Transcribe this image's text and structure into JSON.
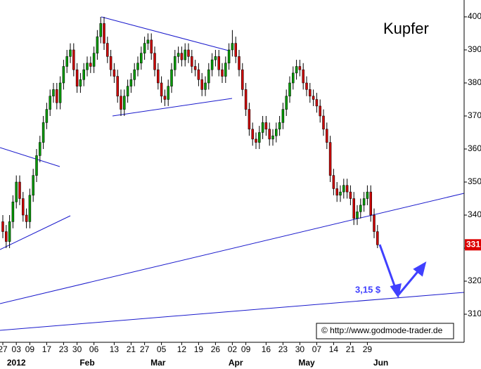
{
  "chart_data": {
    "type": "candlestick",
    "title": "Kupfer",
    "categories": [
      "27",
      null,
      null,
      null,
      "03",
      null,
      null,
      null,
      "09",
      null,
      null,
      null,
      null,
      "17",
      null,
      null,
      null,
      null,
      "23",
      null,
      null,
      null,
      "30",
      null,
      null,
      null,
      null,
      "06",
      null,
      null,
      null,
      null,
      null,
      "13",
      null,
      null,
      null,
      null,
      "21",
      null,
      null,
      null,
      "27",
      null,
      null,
      null,
      null,
      "05",
      null,
      null,
      null,
      null,
      null,
      "12",
      null,
      null,
      null,
      null,
      "19",
      null,
      null,
      null,
      null,
      "26",
      null,
      null,
      null,
      null,
      "02",
      null,
      null,
      null,
      "09",
      null,
      null,
      null,
      null,
      null,
      "16",
      null,
      null,
      null,
      null,
      "23",
      null,
      null,
      null,
      null,
      "30",
      null,
      null,
      null,
      null,
      "07",
      null,
      null,
      null,
      null,
      "14",
      null,
      null,
      null,
      null,
      "21",
      null,
      null,
      null,
      null,
      "29",
      null,
      null,
      null
    ],
    "month_labels": [
      {
        "label": "2012",
        "index": 4
      },
      {
        "label": "Feb",
        "index": 25
      },
      {
        "label": "Mar",
        "index": 46
      },
      {
        "label": "Apr",
        "index": 69
      },
      {
        "label": "May",
        "index": 90
      },
      {
        "label": "Jun",
        "index": 112
      }
    ],
    "open": [
      338,
      335,
      332,
      338,
      344,
      350,
      345,
      340,
      338,
      346,
      352,
      358,
      362,
      368,
      372,
      376,
      378,
      374,
      380,
      385,
      388,
      390,
      384,
      379,
      381,
      384,
      386,
      385,
      389,
      394,
      398,
      392,
      388,
      384,
      382,
      376,
      372,
      376,
      379,
      381,
      384,
      386,
      389,
      392,
      393,
      389,
      384,
      380,
      376,
      375,
      379,
      384,
      388,
      389,
      387,
      390,
      388,
      385,
      384,
      381,
      378,
      380,
      384,
      387,
      388,
      384,
      382,
      386,
      390,
      392,
      388,
      384,
      378,
      372,
      366,
      363,
      362,
      365,
      368,
      366,
      363,
      364,
      366,
      368,
      372,
      376,
      380,
      383,
      385,
      384,
      380,
      378,
      376,
      375,
      373,
      370,
      366,
      362,
      352,
      348,
      346,
      347,
      349,
      347,
      345,
      339,
      341,
      343,
      345,
      347,
      340,
      335
    ],
    "high": [
      340,
      337,
      340,
      346,
      352,
      352,
      347,
      342,
      348,
      354,
      360,
      364,
      370,
      374,
      378,
      380,
      380,
      382,
      387,
      390,
      392,
      392,
      386,
      383,
      386,
      388,
      388,
      391,
      396,
      400,
      400,
      394,
      390,
      386,
      384,
      378,
      378,
      381,
      383,
      386,
      388,
      391,
      394,
      395,
      395,
      391,
      386,
      382,
      378,
      381,
      386,
      390,
      391,
      391,
      392,
      392,
      390,
      387,
      386,
      383,
      382,
      386,
      389,
      390,
      390,
      386,
      388,
      392,
      396,
      394,
      390,
      386,
      380,
      374,
      368,
      365,
      367,
      370,
      370,
      368,
      366,
      368,
      370,
      374,
      378,
      382,
      385,
      387,
      387,
      386,
      382,
      380,
      378,
      377,
      375,
      372,
      368,
      364,
      354,
      350,
      349,
      351,
      351,
      349,
      347,
      343,
      345,
      347,
      349,
      349,
      342,
      337
    ],
    "low": [
      333,
      330,
      330,
      336,
      342,
      343,
      338,
      336,
      336,
      344,
      350,
      356,
      360,
      366,
      370,
      374,
      372,
      372,
      378,
      383,
      386,
      382,
      377,
      377,
      379,
      382,
      383,
      383,
      387,
      392,
      390,
      386,
      382,
      380,
      374,
      370,
      370,
      374,
      377,
      379,
      382,
      384,
      387,
      390,
      387,
      382,
      378,
      374,
      373,
      373,
      377,
      382,
      386,
      385,
      385,
      386,
      383,
      382,
      379,
      376,
      376,
      378,
      382,
      385,
      382,
      380,
      380,
      384,
      388,
      386,
      382,
      376,
      370,
      364,
      361,
      360,
      360,
      363,
      364,
      361,
      361,
      362,
      364,
      366,
      370,
      374,
      378,
      381,
      382,
      378,
      376,
      374,
      373,
      371,
      368,
      364,
      360,
      350,
      346,
      344,
      344,
      345,
      345,
      343,
      337,
      337,
      339,
      341,
      343,
      338,
      333,
      330
    ],
    "close": [
      335,
      332,
      338,
      344,
      350,
      345,
      340,
      338,
      346,
      352,
      358,
      362,
      368,
      372,
      376,
      378,
      374,
      380,
      385,
      388,
      390,
      384,
      379,
      381,
      384,
      386,
      385,
      389,
      394,
      398,
      392,
      388,
      384,
      382,
      376,
      372,
      376,
      379,
      381,
      384,
      386,
      389,
      392,
      393,
      389,
      384,
      380,
      376,
      375,
      379,
      384,
      388,
      389,
      387,
      390,
      388,
      385,
      384,
      381,
      378,
      380,
      384,
      387,
      388,
      384,
      382,
      386,
      390,
      392,
      388,
      384,
      378,
      372,
      366,
      363,
      362,
      365,
      368,
      366,
      363,
      364,
      366,
      368,
      372,
      376,
      380,
      383,
      385,
      384,
      380,
      378,
      376,
      375,
      373,
      370,
      366,
      362,
      352,
      348,
      346,
      347,
      349,
      347,
      345,
      339,
      341,
      343,
      345,
      347,
      340,
      335,
      331
    ],
    "up_color": "#009900",
    "down_color": "#cc0000",
    "ylim": [
      301.5,
      405.1
    ],
    "yticks": [
      310,
      320,
      330,
      340,
      350,
      360,
      370,
      380,
      390,
      400
    ],
    "last_price": 331,
    "last_price_color": "#dd0000",
    "annotation": "3,15 $",
    "source": "© http://www.godmode-trader.de"
  }
}
